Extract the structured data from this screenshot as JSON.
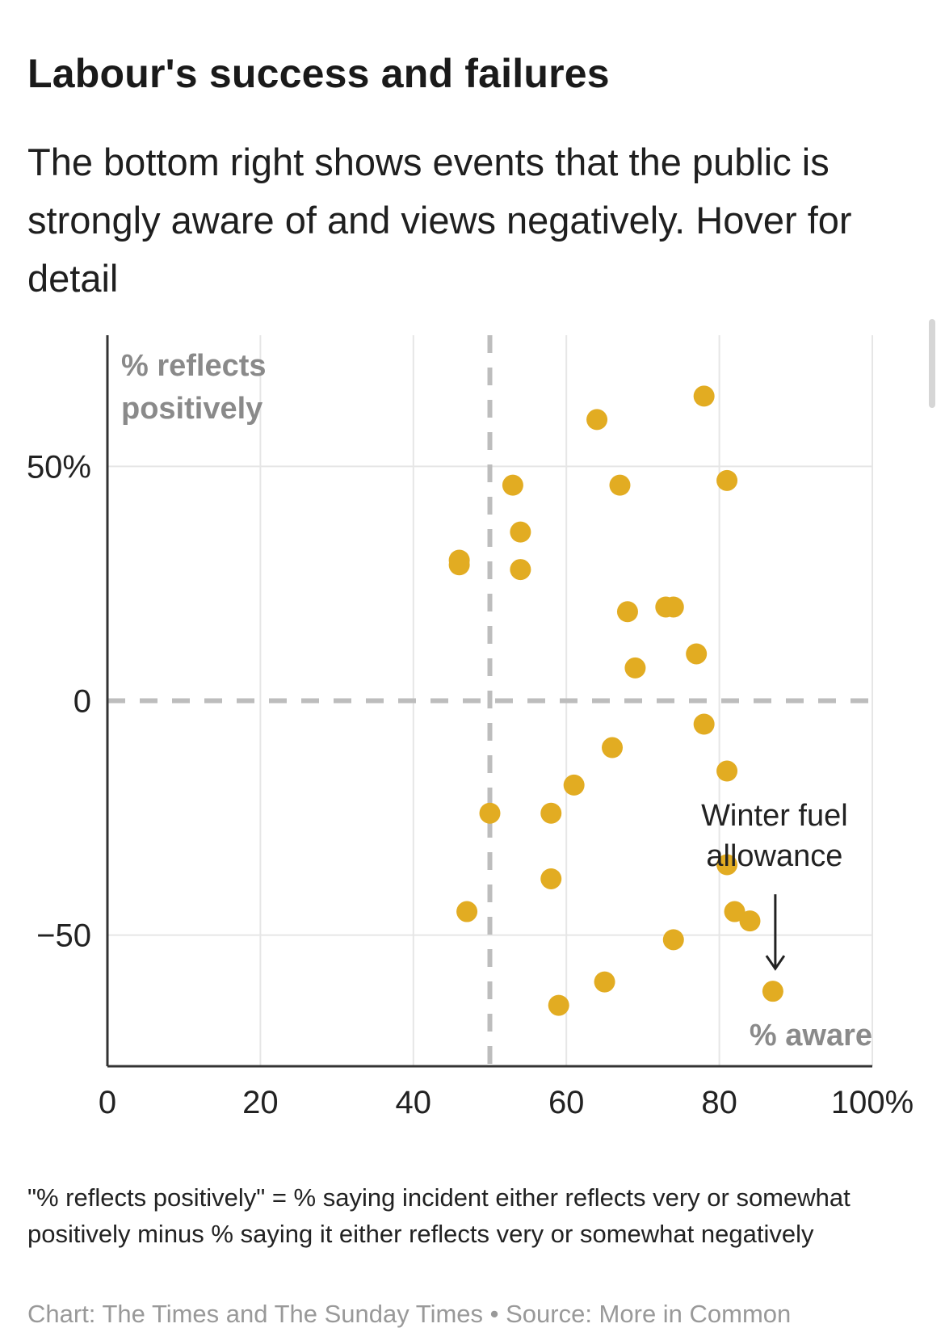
{
  "header": {
    "title": "Labour's success and failures",
    "subtitle": "The bottom right shows events that the public is strongly aware of and views negatively. Hover for detail"
  },
  "chart_data": {
    "type": "scatter",
    "xlabel": "% aware",
    "ylabel": "% reflects positively",
    "xlim": [
      0,
      100
    ],
    "ylim": [
      -78,
      78
    ],
    "x_ticks": [
      0,
      20,
      40,
      60,
      80,
      100
    ],
    "x_tick_labels": [
      "0",
      "20",
      "40",
      "60",
      "80",
      "100%"
    ],
    "y_ticks": [
      50,
      0,
      -50
    ],
    "y_tick_labels": [
      "50%",
      "0",
      "−50"
    ],
    "reference_lines": {
      "x": 50,
      "y": 0
    },
    "grid": true,
    "points_color": "#e2ac22",
    "series": [
      {
        "points": [
          {
            "x": 78,
            "y": 65
          },
          {
            "x": 64,
            "y": 60
          },
          {
            "x": 53,
            "y": 46
          },
          {
            "x": 67,
            "y": 46
          },
          {
            "x": 81,
            "y": 47
          },
          {
            "x": 54,
            "y": 36
          },
          {
            "x": 46,
            "y": 30
          },
          {
            "x": 46,
            "y": 29
          },
          {
            "x": 54,
            "y": 28
          },
          {
            "x": 68,
            "y": 19
          },
          {
            "x": 73,
            "y": 20
          },
          {
            "x": 74,
            "y": 20
          },
          {
            "x": 77,
            "y": 10
          },
          {
            "x": 69,
            "y": 7
          },
          {
            "x": 78,
            "y": -5
          },
          {
            "x": 66,
            "y": -10
          },
          {
            "x": 81,
            "y": -15
          },
          {
            "x": 61,
            "y": -18
          },
          {
            "x": 50,
            "y": -24
          },
          {
            "x": 58,
            "y": -24
          },
          {
            "x": 81,
            "y": -35
          },
          {
            "x": 58,
            "y": -38
          },
          {
            "x": 47,
            "y": -45
          },
          {
            "x": 82,
            "y": -45
          },
          {
            "x": 84,
            "y": -47
          },
          {
            "x": 74,
            "y": -51
          },
          {
            "x": 65,
            "y": -60
          },
          {
            "x": 87,
            "y": -62
          },
          {
            "x": 59,
            "y": -65
          }
        ]
      }
    ],
    "annotations": [
      {
        "text_lines": [
          "Winter fuel",
          "allowance"
        ],
        "point": {
          "x": 87,
          "y": -62
        }
      }
    ]
  },
  "footnote": "\"% reflects positively\" = % saying incident either reflects very or somewhat positively minus % saying it either reflects very or somewhat negatively",
  "source": "Chart: The Times and The Sunday Times • Source: More in Common"
}
